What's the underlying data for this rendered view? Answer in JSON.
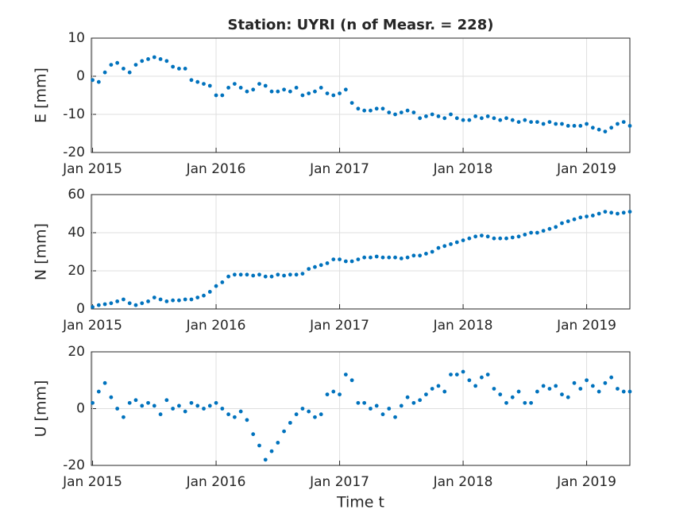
{
  "chart_data": [
    {
      "type": "scatter",
      "title": "Station: UYRI (n of Measr. = 228)",
      "ylabel": "E [mm]",
      "color": "#0072bd",
      "grid": true,
      "x": [
        2015.0,
        2015.05,
        2015.1,
        2015.15,
        2015.2,
        2015.25,
        2015.3,
        2015.35,
        2015.4,
        2015.45,
        2015.5,
        2015.55,
        2015.6,
        2015.65,
        2015.7,
        2015.75,
        2015.8,
        2015.85,
        2015.9,
        2015.95,
        2016.0,
        2016.05,
        2016.1,
        2016.15,
        2016.2,
        2016.25,
        2016.3,
        2016.35,
        2016.4,
        2016.45,
        2016.5,
        2016.55,
        2016.6,
        2016.65,
        2016.7,
        2016.75,
        2016.8,
        2016.85,
        2016.9,
        2016.95,
        2017.0,
        2017.05,
        2017.1,
        2017.15,
        2017.2,
        2017.25,
        2017.3,
        2017.35,
        2017.4,
        2017.45,
        2017.5,
        2017.55,
        2017.6,
        2017.65,
        2017.7,
        2017.75,
        2017.8,
        2017.85,
        2017.9,
        2017.95,
        2018.0,
        2018.05,
        2018.1,
        2018.15,
        2018.2,
        2018.25,
        2018.3,
        2018.35,
        2018.4,
        2018.45,
        2018.5,
        2018.55,
        2018.6,
        2018.65,
        2018.7,
        2018.75,
        2018.8,
        2018.85,
        2018.9,
        2018.95,
        2019.0,
        2019.05,
        2019.1,
        2019.15,
        2019.2,
        2019.25,
        2019.3,
        2019.35
      ],
      "values": [
        -1,
        -1.5,
        1,
        3,
        3.5,
        2,
        1,
        3,
        4,
        4.5,
        5,
        4.5,
        4,
        2.5,
        2,
        2,
        -1,
        -1.5,
        -2,
        -2.5,
        -5,
        -5,
        -3,
        -2,
        -3,
        -4,
        -3.5,
        -2,
        -2.5,
        -4,
        -4,
        -3.5,
        -4,
        -3,
        -5,
        -4.5,
        -4,
        -3,
        -4.5,
        -5,
        -4.5,
        -3.5,
        -7,
        -8.5,
        -9,
        -9,
        -8.5,
        -8.5,
        -9.5,
        -10,
        -9.5,
        -9,
        -9.5,
        -11,
        -10.5,
        -10,
        -10.5,
        -11,
        -10,
        -11,
        -11.5,
        -11.5,
        -10.5,
        -11,
        -10.5,
        -11,
        -11.5,
        -11,
        -11.5,
        -12,
        -11.5,
        -12,
        -12,
        -12.5,
        -12,
        -12.5,
        -12.5,
        -13,
        -13,
        -13,
        -12.5,
        -13.5,
        -14,
        -14.5,
        -13.5,
        -12.5,
        -12,
        -13
      ],
      "xlim": [
        2014.99,
        2019.35
      ],
      "ylim": [
        -20,
        10
      ],
      "yticks": [
        -20,
        -10,
        0,
        10
      ],
      "xticks": [
        {
          "value": 2015,
          "label": "Jan 2015"
        },
        {
          "value": 2016,
          "label": "Jan 2016"
        },
        {
          "value": 2017,
          "label": "Jan 2017"
        },
        {
          "value": 2018,
          "label": "Jan 2018"
        },
        {
          "value": 2019,
          "label": "Jan 2019"
        }
      ]
    },
    {
      "type": "scatter",
      "ylabel": "N [mm]",
      "color": "#0072bd",
      "grid": true,
      "x": [
        2015.0,
        2015.05,
        2015.1,
        2015.15,
        2015.2,
        2015.25,
        2015.3,
        2015.35,
        2015.4,
        2015.45,
        2015.5,
        2015.55,
        2015.6,
        2015.65,
        2015.7,
        2015.75,
        2015.8,
        2015.85,
        2015.9,
        2015.95,
        2016.0,
        2016.05,
        2016.1,
        2016.15,
        2016.2,
        2016.25,
        2016.3,
        2016.35,
        2016.4,
        2016.45,
        2016.5,
        2016.55,
        2016.6,
        2016.65,
        2016.7,
        2016.75,
        2016.8,
        2016.85,
        2016.9,
        2016.95,
        2017.0,
        2017.05,
        2017.1,
        2017.15,
        2017.2,
        2017.25,
        2017.3,
        2017.35,
        2017.4,
        2017.45,
        2017.5,
        2017.55,
        2017.6,
        2017.65,
        2017.7,
        2017.75,
        2017.8,
        2017.85,
        2017.9,
        2017.95,
        2018.0,
        2018.05,
        2018.1,
        2018.15,
        2018.2,
        2018.25,
        2018.3,
        2018.35,
        2018.4,
        2018.45,
        2018.5,
        2018.55,
        2018.6,
        2018.65,
        2018.7,
        2018.75,
        2018.8,
        2018.85,
        2018.9,
        2018.95,
        2019.0,
        2019.05,
        2019.1,
        2019.15,
        2019.2,
        2019.25,
        2019.3,
        2019.35
      ],
      "values": [
        1,
        2,
        2.5,
        3,
        4,
        5,
        3,
        2,
        3,
        4,
        6,
        5,
        4,
        4.5,
        4.5,
        5,
        5,
        6,
        7,
        9,
        12,
        14,
        17,
        18,
        18,
        18,
        17.5,
        18,
        17,
        17,
        18,
        17.5,
        18,
        18,
        18.5,
        21,
        22,
        23,
        24,
        26,
        26,
        25,
        25,
        26,
        27,
        27,
        27.5,
        27,
        27,
        27,
        26.5,
        27,
        28,
        28,
        29,
        30,
        32,
        33,
        34,
        35,
        36,
        37,
        38,
        38.5,
        38,
        37,
        37,
        37,
        37.5,
        38,
        39,
        40,
        40,
        41,
        42,
        43,
        45,
        46,
        47,
        48,
        48.5,
        49,
        50,
        51,
        50.5,
        50,
        50.5,
        51
      ],
      "xlim": [
        2014.99,
        2019.35
      ],
      "ylim": [
        0,
        60
      ],
      "yticks": [
        0,
        20,
        40,
        60
      ],
      "xticks": [
        {
          "value": 2015,
          "label": "Jan 2015"
        },
        {
          "value": 2016,
          "label": "Jan 2016"
        },
        {
          "value": 2017,
          "label": "Jan 2017"
        },
        {
          "value": 2018,
          "label": "Jan 2018"
        },
        {
          "value": 2019,
          "label": "Jan 2019"
        }
      ]
    },
    {
      "type": "scatter",
      "ylabel": "U [mm]",
      "xlabel": "Time t",
      "color": "#0072bd",
      "grid": true,
      "x": [
        2015.0,
        2015.05,
        2015.1,
        2015.15,
        2015.2,
        2015.25,
        2015.3,
        2015.35,
        2015.4,
        2015.45,
        2015.5,
        2015.55,
        2015.6,
        2015.65,
        2015.7,
        2015.75,
        2015.8,
        2015.85,
        2015.9,
        2015.95,
        2016.0,
        2016.05,
        2016.1,
        2016.15,
        2016.2,
        2016.25,
        2016.3,
        2016.35,
        2016.4,
        2016.45,
        2016.5,
        2016.55,
        2016.6,
        2016.65,
        2016.7,
        2016.75,
        2016.8,
        2016.85,
        2016.9,
        2016.95,
        2017.0,
        2017.05,
        2017.1,
        2017.15,
        2017.2,
        2017.25,
        2017.3,
        2017.35,
        2017.4,
        2017.45,
        2017.5,
        2017.55,
        2017.6,
        2017.65,
        2017.7,
        2017.75,
        2017.8,
        2017.85,
        2017.9,
        2017.95,
        2018.0,
        2018.05,
        2018.1,
        2018.15,
        2018.2,
        2018.25,
        2018.3,
        2018.35,
        2018.4,
        2018.45,
        2018.5,
        2018.55,
        2018.6,
        2018.65,
        2018.7,
        2018.75,
        2018.8,
        2018.85,
        2018.9,
        2018.95,
        2019.0,
        2019.05,
        2019.1,
        2019.15,
        2019.2,
        2019.25,
        2019.3,
        2019.35
      ],
      "values": [
        2,
        6,
        9,
        4,
        0,
        -3,
        2,
        3,
        1,
        2,
        1,
        -2,
        3,
        0,
        1,
        -1,
        2,
        1,
        0,
        1,
        2,
        0,
        -2,
        -3,
        -1,
        -4,
        -9,
        -13,
        -18,
        -15,
        -12,
        -8,
        -5,
        -2,
        0,
        -1,
        -3,
        -2,
        5,
        6,
        5,
        12,
        10,
        2,
        2,
        0,
        1,
        -2,
        0,
        -3,
        1,
        4,
        2,
        3,
        5,
        7,
        8,
        6,
        12,
        12,
        13,
        10,
        8,
        11,
        12,
        7,
        5,
        2,
        4,
        6,
        2,
        2,
        6,
        8,
        7,
        8,
        5,
        4,
        9,
        7,
        10,
        8,
        6,
        9,
        11,
        7,
        6,
        6
      ],
      "xlim": [
        2014.99,
        2019.35
      ],
      "ylim": [
        -20,
        20
      ],
      "yticks": [
        -20,
        0,
        20
      ],
      "xticks": [
        {
          "value": 2015,
          "label": "Jan 2015"
        },
        {
          "value": 2016,
          "label": "Jan 2016"
        },
        {
          "value": 2017,
          "label": "Jan 2017"
        },
        {
          "value": 2018,
          "label": "Jan 2018"
        },
        {
          "value": 2019,
          "label": "Jan 2019"
        }
      ]
    }
  ]
}
